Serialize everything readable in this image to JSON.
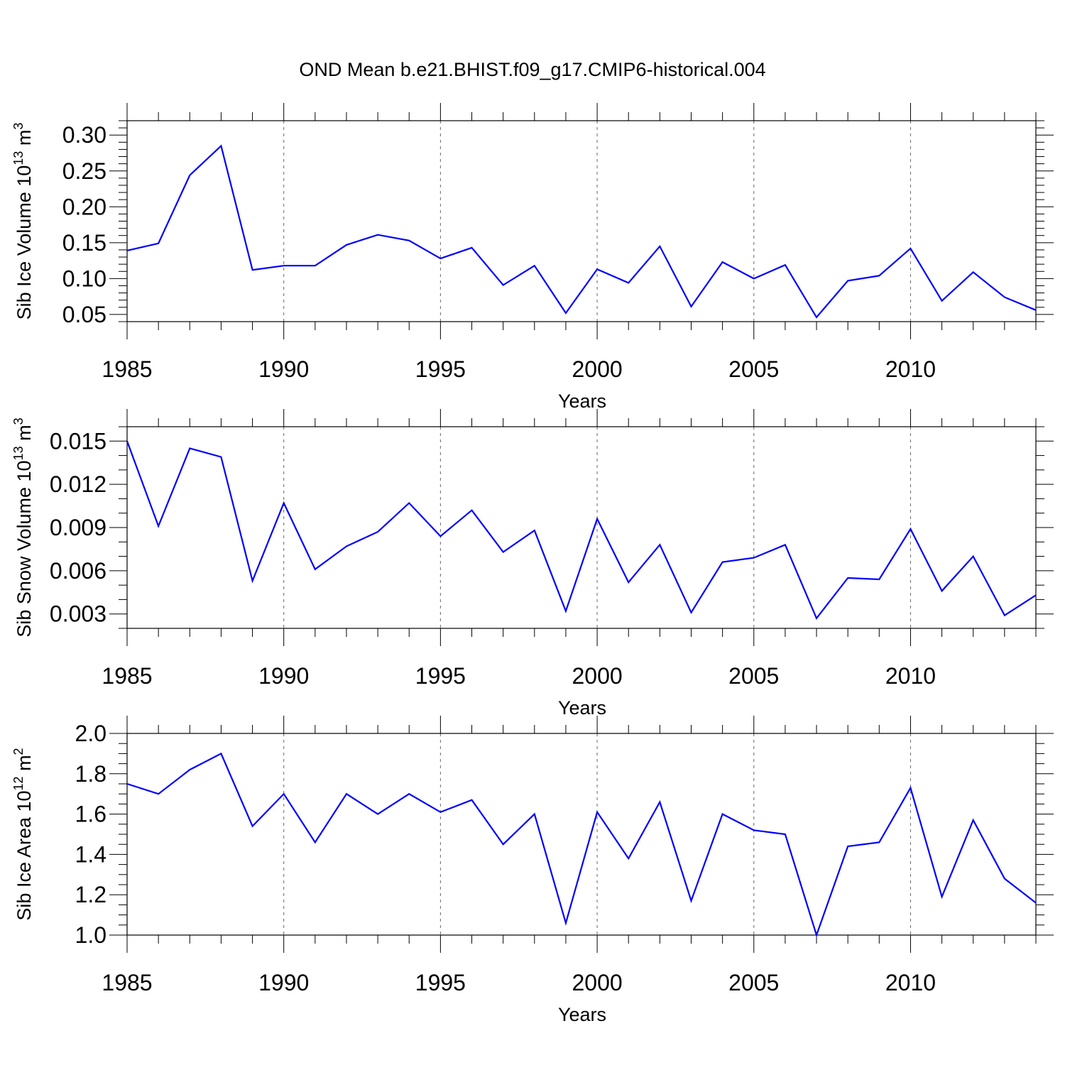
{
  "title": "OND Mean b.e21.BHIST.f09_g17.CMIP6-historical.004",
  "chart_data": [
    {
      "type": "line",
      "title": "OND Mean b.e21.BHIST.f09_g17.CMIP6-historical.004",
      "xlabel": "Years",
      "ylabel_main": "Sib Ice Volume 10",
      "ylabel_exp": "13",
      "ylabel_unit": "m",
      "ylabel_unit_exp": "3",
      "xlim": [
        1985,
        2014
      ],
      "ylim": [
        0.04,
        0.32
      ],
      "xticks": [
        1985,
        1990,
        1995,
        2000,
        2005,
        2010
      ],
      "xtick_labels": [
        "1985",
        "1990",
        "1995",
        "2000",
        "2005",
        "2010"
      ],
      "yticks": [
        0.05,
        0.1,
        0.15,
        0.2,
        0.25,
        0.3
      ],
      "ytick_labels": [
        "0.05",
        "0.10",
        "0.15",
        "0.20",
        "0.25",
        "0.30"
      ],
      "yminor_step": 0.01,
      "grid": "vertical dashed at major x ticks",
      "line_color": "#0000ff",
      "x": [
        1985,
        1986,
        1987,
        1988,
        1989,
        1990,
        1991,
        1992,
        1993,
        1994,
        1995,
        1996,
        1997,
        1998,
        1999,
        2000,
        2001,
        2002,
        2003,
        2004,
        2005,
        2006,
        2007,
        2008,
        2009,
        2010,
        2011,
        2012,
        2013,
        2014
      ],
      "y": [
        0.139,
        0.149,
        0.244,
        0.285,
        0.112,
        0.118,
        0.118,
        0.147,
        0.161,
        0.153,
        0.128,
        0.143,
        0.091,
        0.118,
        0.052,
        0.113,
        0.094,
        0.145,
        0.061,
        0.123,
        0.1,
        0.119,
        0.046,
        0.097,
        0.104,
        0.142,
        0.069,
        0.109,
        0.074,
        0.056
      ]
    },
    {
      "type": "line",
      "xlabel": "Years",
      "ylabel_main": "Sib Snow Volume 10",
      "ylabel_exp": "13",
      "ylabel_unit": "m",
      "ylabel_unit_exp": "3",
      "xlim": [
        1985,
        2014
      ],
      "ylim": [
        0.002,
        0.016
      ],
      "xticks": [
        1985,
        1990,
        1995,
        2000,
        2005,
        2010
      ],
      "xtick_labels": [
        "1985",
        "1990",
        "1995",
        "2000",
        "2005",
        "2010"
      ],
      "yticks": [
        0.003,
        0.006,
        0.009,
        0.012,
        0.015
      ],
      "ytick_labels": [
        "0.003",
        "0.006",
        "0.009",
        "0.012",
        "0.015"
      ],
      "yminor_step": 0.001,
      "grid": "vertical dashed at major x ticks",
      "line_color": "#0000ff",
      "x": [
        1985,
        1986,
        1987,
        1988,
        1989,
        1990,
        1991,
        1992,
        1993,
        1994,
        1995,
        1996,
        1997,
        1998,
        1999,
        2000,
        2001,
        2002,
        2003,
        2004,
        2005,
        2006,
        2007,
        2008,
        2009,
        2010,
        2011,
        2012,
        2013,
        2014
      ],
      "y": [
        0.015,
        0.0091,
        0.0145,
        0.0139,
        0.0053,
        0.0107,
        0.0061,
        0.0077,
        0.0087,
        0.0107,
        0.0084,
        0.0102,
        0.0073,
        0.0088,
        0.0032,
        0.0096,
        0.0052,
        0.0078,
        0.0031,
        0.0066,
        0.0069,
        0.0078,
        0.0027,
        0.0055,
        0.0054,
        0.0089,
        0.0046,
        0.007,
        0.0029,
        0.0043
      ]
    },
    {
      "type": "line",
      "xlabel": "Years",
      "ylabel_main": "Sib Ice Area 10",
      "ylabel_exp": "12",
      "ylabel_unit": "m",
      "ylabel_unit_exp": "2",
      "xlim": [
        1985,
        2014
      ],
      "ylim": [
        1.0,
        2.0
      ],
      "xticks": [
        1985,
        1990,
        1995,
        2000,
        2005,
        2010
      ],
      "xtick_labels": [
        "1985",
        "1990",
        "1995",
        "2000",
        "2005",
        "2010"
      ],
      "yticks": [
        1.0,
        1.2,
        1.4,
        1.6,
        1.8,
        2.0
      ],
      "ytick_labels": [
        "1.0",
        "1.2",
        "1.4",
        "1.6",
        "1.8",
        "2.0"
      ],
      "yminor_step": 0.05,
      "grid": "vertical dashed at major x ticks",
      "line_color": "#0000ff",
      "x": [
        1985,
        1986,
        1987,
        1988,
        1989,
        1990,
        1991,
        1992,
        1993,
        1994,
        1995,
        1996,
        1997,
        1998,
        1999,
        2000,
        2001,
        2002,
        2003,
        2004,
        2005,
        2006,
        2007,
        2008,
        2009,
        2010,
        2011,
        2012,
        2013,
        2014
      ],
      "y": [
        1.75,
        1.7,
        1.82,
        1.9,
        1.54,
        1.7,
        1.46,
        1.7,
        1.6,
        1.7,
        1.61,
        1.67,
        1.45,
        1.6,
        1.06,
        1.61,
        1.38,
        1.66,
        1.17,
        1.6,
        1.52,
        1.5,
        1.0,
        1.44,
        1.46,
        1.73,
        1.19,
        1.57,
        1.28,
        1.16
      ]
    }
  ]
}
